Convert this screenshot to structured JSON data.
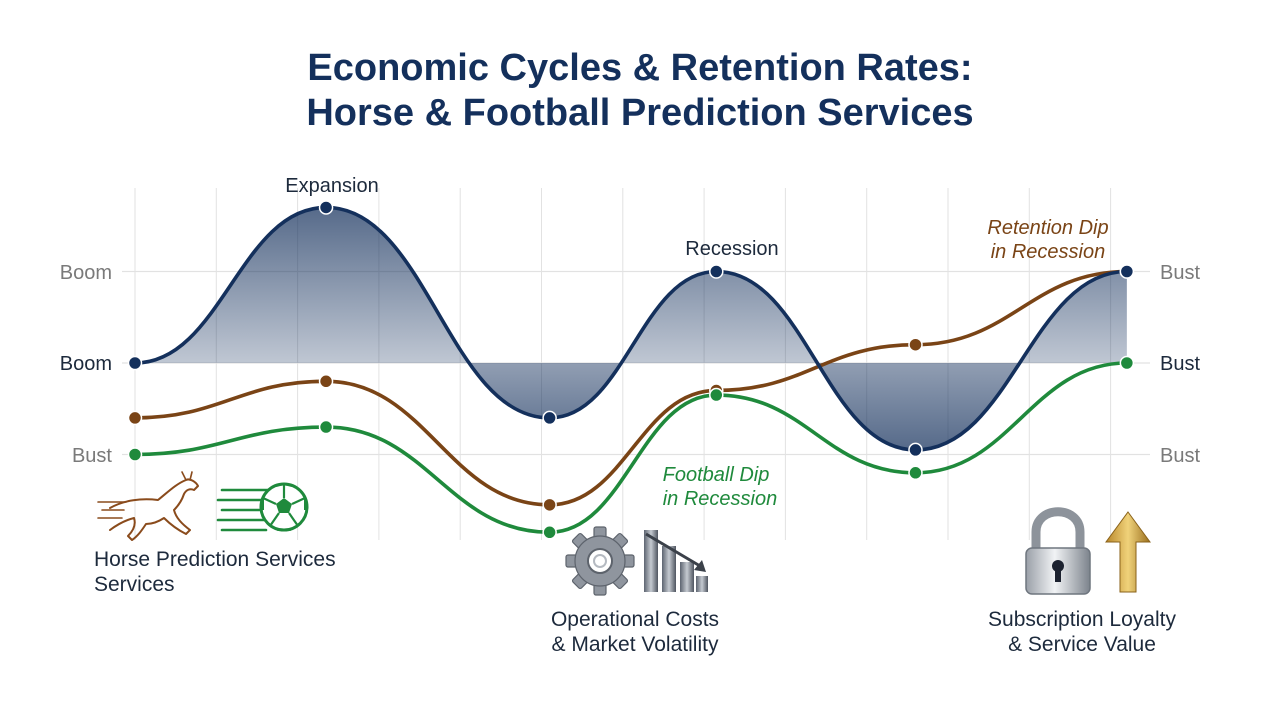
{
  "title": "Economic Cycles & Retention Rates:",
  "subtitle": "Horse & Football Prediction Services",
  "colors": {
    "economy": "#14305c",
    "horse": "#7a4416",
    "football": "#1f8a3c",
    "grid": "#e2e2e2",
    "muted_label": "#7a7a7a"
  },
  "chart_data": {
    "type": "line",
    "title": "Economic Cycles & Retention Rates: Horse & Football Prediction Services",
    "grid": true,
    "y_levels": {
      "left": [
        "Boom",
        "Boom",
        "Bust"
      ],
      "right": [
        "Bust",
        "Bust",
        "Bust"
      ]
    },
    "series": [
      {
        "key": "economy",
        "points": [
          [
            0,
            0
          ],
          [
            2.35,
            1.7
          ],
          [
            5.1,
            -0.6
          ],
          [
            7.15,
            1.0
          ],
          [
            9.6,
            -0.95
          ],
          [
            12.2,
            1.0
          ]
        ]
      },
      {
        "key": "horse",
        "points": [
          [
            0,
            -0.6
          ],
          [
            2.35,
            -0.2
          ],
          [
            5.1,
            -1.55
          ],
          [
            7.15,
            -0.3
          ],
          [
            9.6,
            0.2
          ],
          [
            12.2,
            1.0
          ]
        ]
      },
      {
        "key": "football",
        "points": [
          [
            0,
            -1.0
          ],
          [
            2.35,
            -0.7
          ],
          [
            5.1,
            -1.85
          ],
          [
            7.15,
            -0.35
          ],
          [
            9.6,
            -1.2
          ],
          [
            12.2,
            0.0
          ]
        ]
      }
    ],
    "annotations": {
      "expansion": "Expansion",
      "recession": "Recession",
      "retention_dip_1": "Retention Dip",
      "retention_dip_2": "in Recession",
      "football_dip_1": "Football Dip",
      "football_dip_2": "in Recession"
    },
    "captions": {
      "horse_1": "Horse Prediction Services",
      "horse_2": "Services",
      "costs_1": "Operational Costs",
      "costs_2": "& Market Volatility",
      "loyalty_1": "Subscription Loyalty",
      "loyalty_2": "& Service Value"
    },
    "icons": [
      "horse-icon",
      "soccer-ball-icon",
      "gear-icon",
      "declining-bars-icon",
      "padlock-icon",
      "up-arrow-icon"
    ]
  }
}
